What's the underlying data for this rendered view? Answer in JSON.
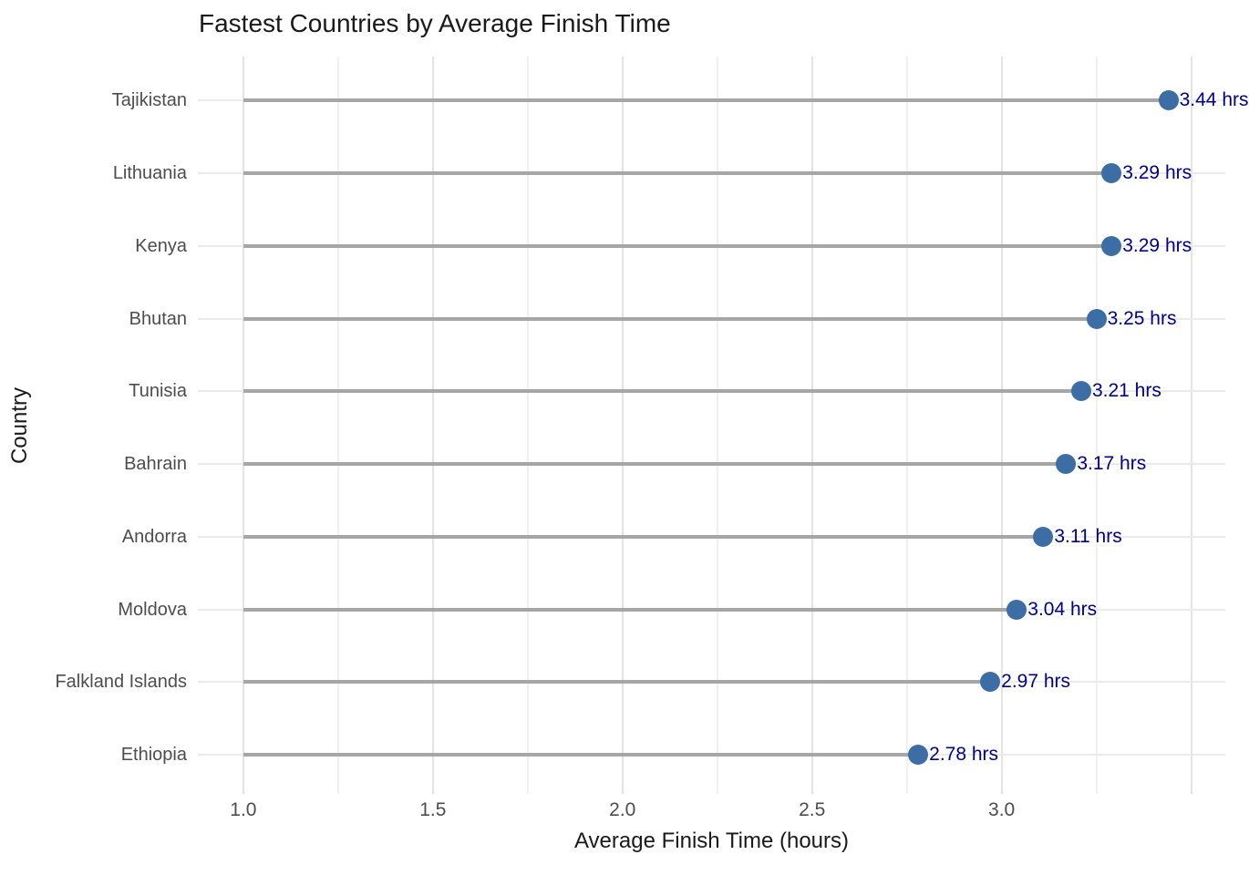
{
  "figure": {
    "title": "Fastest Countries by Average Finish Time",
    "x_axis_title": "Average Finish Time (hours)",
    "y_axis_title": "Country"
  },
  "chart_data": {
    "type": "lollipop",
    "orientation": "horizontal",
    "title": "Fastest Countries by Average Finish Time",
    "xlabel": "Average Finish Time (hours)",
    "ylabel": "Country",
    "categories": [
      "Tajikistan",
      "Lithuania",
      "Kenya",
      "Bhutan",
      "Tunisia",
      "Bahrain",
      "Andorra",
      "Moldova",
      "Falkland Islands",
      "Ethiopia"
    ],
    "values": [
      3.44,
      3.29,
      3.29,
      3.25,
      3.21,
      3.17,
      3.11,
      3.04,
      2.97,
      2.78
    ],
    "point_labels": [
      "3.44 hrs",
      "3.29 hrs",
      "3.29 hrs",
      "3.25 hrs",
      "3.21 hrs",
      "3.17 hrs",
      "3.11 hrs",
      "3.04 hrs",
      "2.97 hrs",
      "2.78 hrs"
    ],
    "unit": "hrs",
    "xlim": [
      0.88,
      3.59
    ],
    "x_tick_values": [
      1.0,
      1.5,
      2.0,
      2.5,
      3.0
    ],
    "x_tick_labels": [
      "1.0",
      "1.5",
      "2.0",
      "2.5",
      "3.0"
    ],
    "x_major_gridlines": [
      1.0,
      1.5,
      2.0,
      2.5,
      3.0,
      3.5
    ],
    "x_minor_gridlines": [
      1.25,
      1.75,
      2.25,
      2.75,
      3.25
    ],
    "grid": true,
    "legend": false,
    "colors": {
      "point": "#3c6ea5",
      "stem": "#a6a6a6",
      "value_label": "#00008b",
      "grid_major": "#e3e3e3",
      "grid_minor": "#f1f1f1",
      "row_grid": "#ebebeb",
      "axis_text": "#4d4d4d",
      "title_text": "#1a1a1a"
    }
  }
}
